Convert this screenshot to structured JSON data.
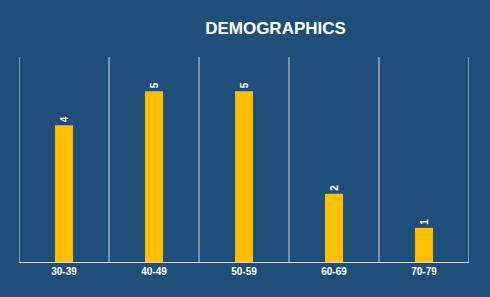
{
  "chart_data": {
    "type": "bar",
    "title": "DEMOGRAPHICS",
    "categories": [
      "30-39",
      "40-49",
      "50-59",
      "60-69",
      "70-79"
    ],
    "values": [
      4,
      5,
      5,
      2,
      1
    ],
    "color": "#ffc000",
    "ylim": [
      0,
      6
    ],
    "grid": true,
    "data_labels": true,
    "tick_labels": "x"
  }
}
